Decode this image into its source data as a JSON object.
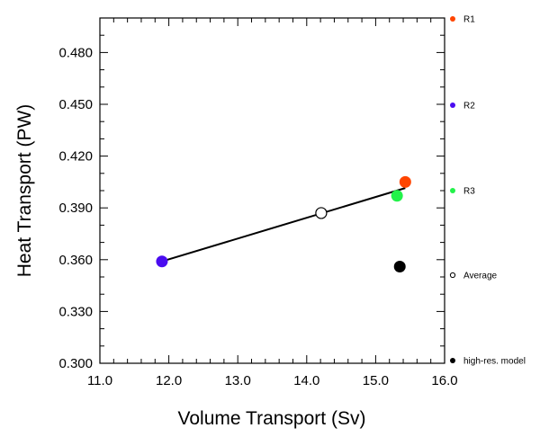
{
  "chart_data": {
    "type": "scatter",
    "title": "",
    "xlabel": "Volume Transport (Sv)",
    "ylabel": "Heat Transport (PW)",
    "xlim": [
      11.0,
      16.0
    ],
    "ylim": [
      0.3,
      0.5
    ],
    "x_ticks": [
      "11.0",
      "12.0",
      "13.0",
      "14.0",
      "15.0",
      "16.0"
    ],
    "y_ticks": [
      "0.300",
      "0.330",
      "0.360",
      "0.390",
      "0.420",
      "0.450",
      "0.480"
    ],
    "grid": false,
    "legend_position": "right",
    "series": [
      {
        "name": "R1",
        "x": 15.43,
        "y": 0.405,
        "color": "#ff4500",
        "marker": "filled-circle"
      },
      {
        "name": "R2",
        "x": 11.9,
        "y": 0.359,
        "color": "#4a0cf0",
        "marker": "filled-circle"
      },
      {
        "name": "R3",
        "x": 15.31,
        "y": 0.397,
        "color": "#22f24a",
        "marker": "filled-circle"
      },
      {
        "name": "Average",
        "x": 14.21,
        "y": 0.387,
        "color": "#000000",
        "marker": "open-circle"
      },
      {
        "name": "high-res. model",
        "x": 15.35,
        "y": 0.356,
        "color": "#000000",
        "marker": "filled-circle"
      }
    ],
    "regression_line": {
      "x": [
        11.9,
        15.43
      ],
      "y": [
        0.359,
        0.4015
      ],
      "color": "#000000"
    }
  }
}
